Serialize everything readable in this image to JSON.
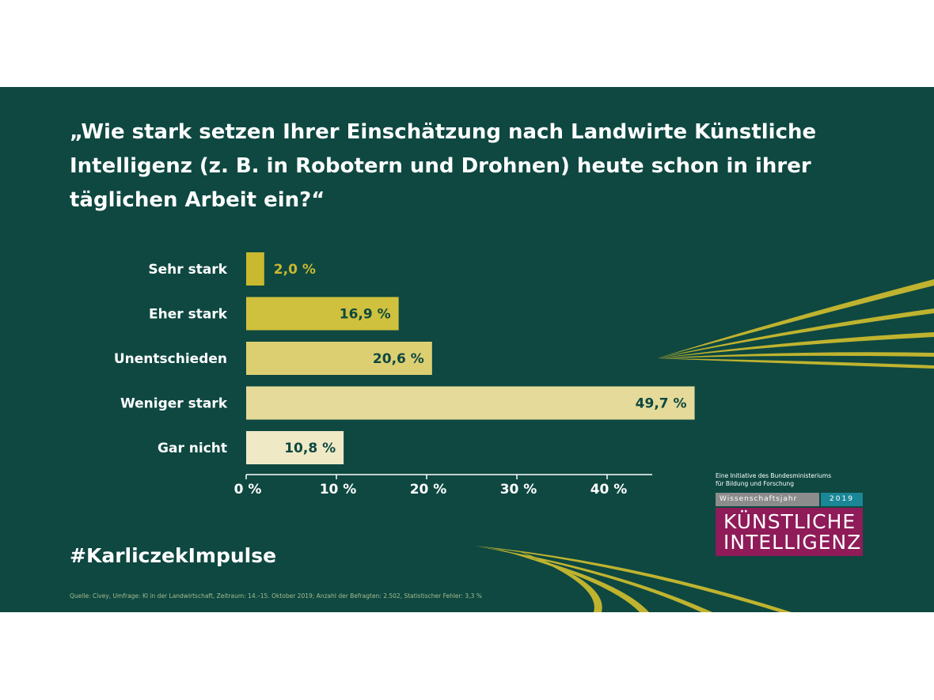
{
  "question": "„Wie stark setzen Ihrer Einschätzung nach Landwirte Künstliche Intelligenz (z. B. in Robotern und Drohnen) heute schon in ihrer täglichen Arbeit ein?“",
  "hashtag": "#KarliczekImpulse",
  "source": "Quelle: Civey, Umfrage: KI in der Landwirtschaft, Zeitraum: 14.–15. Oktober 2019; Anzahl der Befragten: 2.502, Statistischer Fehler: 3,3 %",
  "logo": {
    "initiative_line1": "Eine Initiative des Bundesministeriums",
    "initiative_line2": "für Bildung und Forschung",
    "wissenschaftsjahr": "Wissenschaftsjahr",
    "year": "2019",
    "title_line1": "KÜNSTLICHE",
    "title_line2": "INTELLIGENZ"
  },
  "colors": {
    "background": "#0e4841",
    "bar_colors": [
      "#c9b92f",
      "#cfc13d",
      "#dccf72",
      "#e5da99",
      "#f0e9c6"
    ],
    "label_dark": "#0e4841",
    "label_outside": "#c9b92f"
  },
  "chart_data": {
    "type": "bar",
    "orientation": "horizontal",
    "categories": [
      "Sehr stark",
      "Eher stark",
      "Unentschieden",
      "Weniger stark",
      "Gar nicht"
    ],
    "values": [
      2.0,
      16.9,
      20.6,
      49.7,
      10.8
    ],
    "value_labels": [
      "2,0 %",
      "16,9 %",
      "20,6 %",
      "49,7 %",
      "10,8 %"
    ],
    "xticks": [
      0,
      10,
      20,
      30,
      40
    ],
    "xtick_labels": [
      "0 %",
      "10 %",
      "20 %",
      "30 %",
      "40 %"
    ],
    "xlim": [
      0,
      45
    ],
    "unit": "%"
  }
}
